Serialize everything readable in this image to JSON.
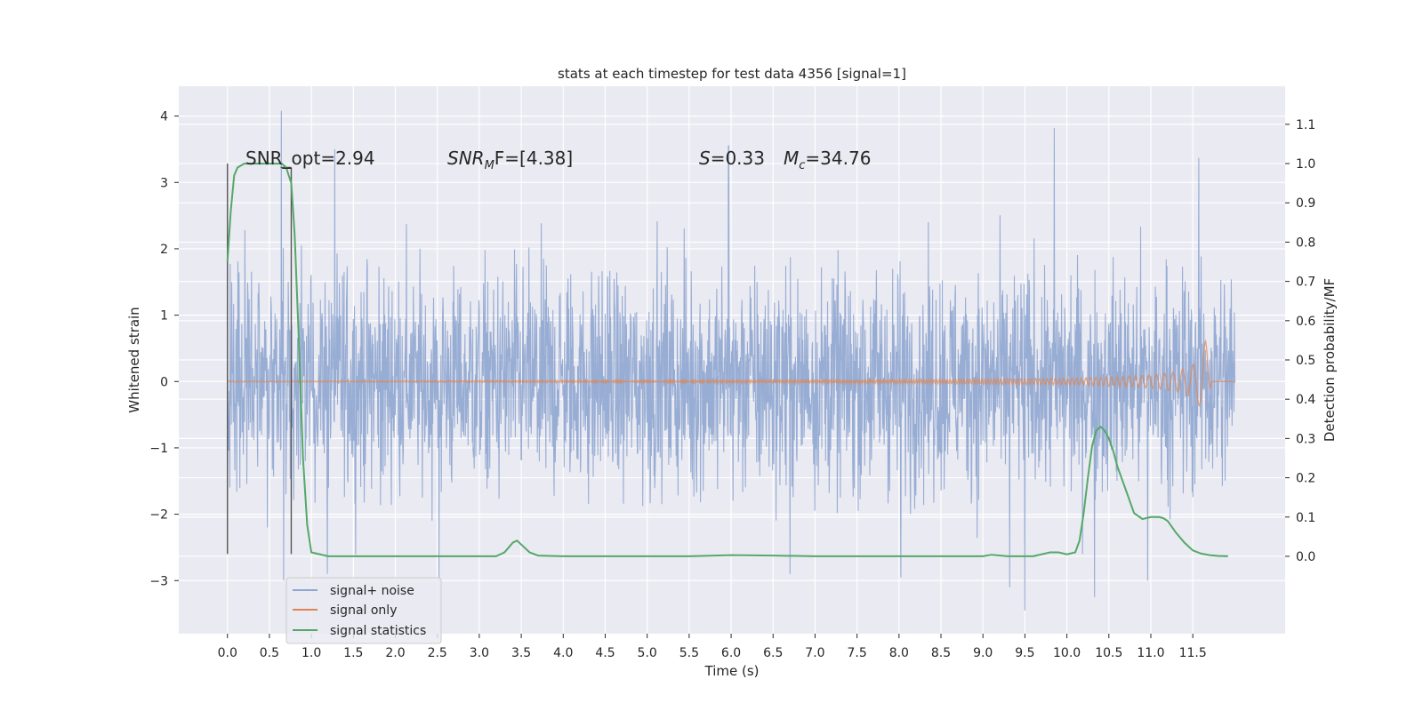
{
  "chart_data": {
    "type": "line",
    "title": "stats at each timestep for test data 4356 [signal=1]",
    "xlabel": "Time (s)",
    "ylabel_left": "Whitened strain",
    "ylabel_right": "Detection probability/MF",
    "xlim": [
      -0.58,
      12.6
    ],
    "ylim_left": [
      -3.8,
      4.45
    ],
    "ylim_right": [
      -0.197,
      1.197
    ],
    "x_ticks": [
      "0.0",
      "0.5",
      "1.0",
      "1.5",
      "2.0",
      "2.5",
      "3.0",
      "3.5",
      "4.0",
      "4.5",
      "5.0",
      "5.5",
      "6.0",
      "6.5",
      "7.0",
      "7.5",
      "8.0",
      "8.5",
      "9.0",
      "9.5",
      "10.0",
      "10.5",
      "11.0",
      "11.5"
    ],
    "y_ticks_left": [
      {
        "v": 4,
        "t": "4"
      },
      {
        "v": 3,
        "t": "3"
      },
      {
        "v": 2,
        "t": "2"
      },
      {
        "v": 1,
        "t": "1"
      },
      {
        "v": 0,
        "t": "0"
      },
      {
        "v": -1,
        "t": "−1"
      },
      {
        "v": -2,
        "t": "−2"
      },
      {
        "v": -3,
        "t": "−3"
      }
    ],
    "y_ticks_right": [
      "0.0",
      "0.1",
      "0.2",
      "0.3",
      "0.4",
      "0.5",
      "0.6",
      "0.7",
      "0.8",
      "0.9",
      "1.0",
      "1.1"
    ],
    "grid": true,
    "legend_position": "lower-left",
    "annotations": {
      "snr_opt": "SNR_opt=2.94",
      "snr_mf_main": "SNR",
      "snr_mf_sub": "M",
      "snr_mf_rest": "F=[4.38]",
      "s_main": "S",
      "s_rest": "=0.33",
      "mc_main": "M",
      "mc_sub": "c",
      "mc_rest": "=34.76"
    },
    "series": [
      {
        "name": "signal+ noise",
        "color": "#8fa6d0",
        "axis": "left",
        "x_range": [
          0.0,
          12.0
        ],
        "band": {
          "core": [
            -1.5,
            1.5
          ],
          "typical_peaks": [
            -2.6,
            2.6
          ]
        },
        "spikes": [
          {
            "x": 0.64,
            "y": 4.08
          },
          {
            "x": 9.85,
            "y": 3.82
          },
          {
            "x": 5.97,
            "y": 3.55
          },
          {
            "x": 1.28,
            "y": 3.5
          },
          {
            "x": 11.57,
            "y": 3.37
          },
          {
            "x": 0.67,
            "y": -3.0
          },
          {
            "x": 2.52,
            "y": -3.0
          },
          {
            "x": 9.5,
            "y": -3.45
          },
          {
            "x": 9.32,
            "y": -3.1
          },
          {
            "x": 10.33,
            "y": -3.25
          },
          {
            "x": 10.96,
            "y": -3.0
          },
          {
            "x": 8.02,
            "y": -2.95
          },
          {
            "x": 6.7,
            "y": -2.9
          },
          {
            "x": 1.19,
            "y": -2.9
          }
        ]
      },
      {
        "name": "signal only",
        "color": "#dd8452",
        "axis": "left",
        "x": [
          0.0,
          2.0,
          4.0,
          6.0,
          8.0,
          9.0,
          10.0,
          10.5,
          11.0,
          11.3,
          11.5,
          11.6,
          11.65,
          11.68,
          11.72
        ],
        "amplitude": [
          0.01,
          0.01,
          0.015,
          0.02,
          0.03,
          0.04,
          0.05,
          0.07,
          0.1,
          0.15,
          0.25,
          0.4,
          0.62,
          0.55,
          0.0
        ]
      },
      {
        "name": "signal statistics",
        "color": "#55a868",
        "axis": "right",
        "x": [
          0.0,
          0.04,
          0.08,
          0.12,
          0.2,
          0.3,
          0.4,
          0.5,
          0.6,
          0.65,
          0.7,
          0.73,
          0.76,
          0.8,
          0.85,
          0.9,
          0.95,
          1.0,
          1.2,
          1.5,
          2.0,
          2.5,
          3.0,
          3.2,
          3.3,
          3.4,
          3.45,
          3.5,
          3.6,
          3.7,
          4.0,
          5.0,
          5.5,
          6.0,
          6.5,
          7.0,
          7.5,
          8.0,
          8.5,
          9.0,
          9.1,
          9.3,
          9.6,
          9.8,
          9.9,
          10.0,
          10.1,
          10.15,
          10.2,
          10.25,
          10.3,
          10.35,
          10.4,
          10.45,
          10.5,
          10.55,
          10.6,
          10.7,
          10.8,
          10.9,
          11.0,
          11.1,
          11.15,
          11.2,
          11.3,
          11.4,
          11.5,
          11.6,
          11.7,
          11.8,
          11.92
        ],
        "y": [
          0.75,
          0.88,
          0.97,
          0.99,
          1.0,
          1.0,
          1.0,
          1.0,
          1.0,
          1.0,
          0.99,
          0.97,
          0.95,
          0.82,
          0.55,
          0.25,
          0.08,
          0.01,
          0.0,
          0.0,
          0.0,
          0.0,
          0.0,
          0.0,
          0.01,
          0.035,
          0.04,
          0.03,
          0.01,
          0.002,
          0.0,
          0.0,
          0.0,
          0.003,
          0.002,
          0.0,
          0.0,
          0.0,
          0.0,
          0.0,
          0.004,
          0.0,
          0.0,
          0.01,
          0.01,
          0.005,
          0.01,
          0.04,
          0.11,
          0.2,
          0.28,
          0.32,
          0.33,
          0.32,
          0.3,
          0.27,
          0.23,
          0.17,
          0.11,
          0.095,
          0.1,
          0.1,
          0.097,
          0.09,
          0.06,
          0.035,
          0.015,
          0.007,
          0.003,
          0.001,
          0.0
        ]
      }
    ],
    "vertical_markers": [
      {
        "x": 0.0,
        "y_top_right": 1.0,
        "y_bottom_left": -2.6
      },
      {
        "x": 0.76,
        "y_top_right": 0.99,
        "y_bottom_left": -2.6
      }
    ]
  }
}
